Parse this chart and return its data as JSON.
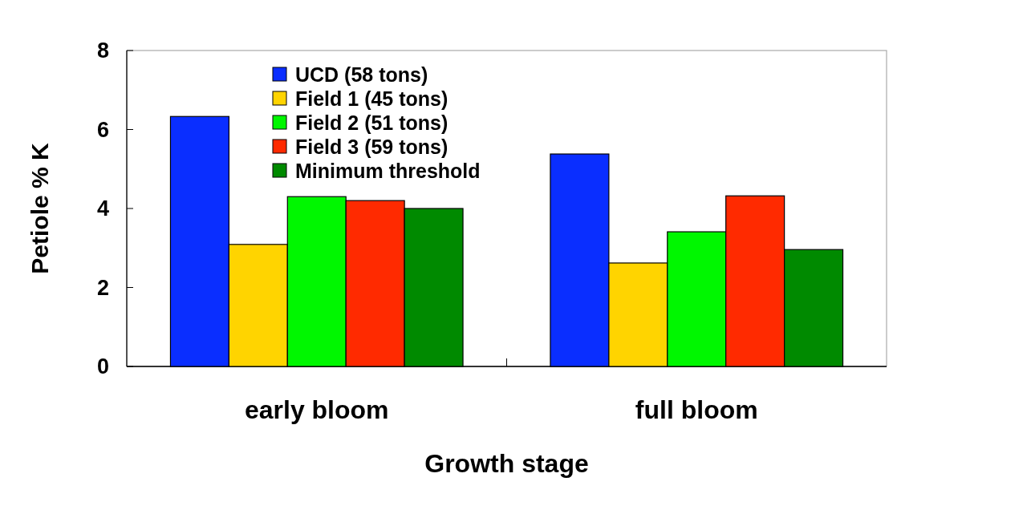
{
  "chart_data": {
    "type": "bar",
    "categories": [
      "early bloom",
      "full bloom"
    ],
    "xlabel": "Growth stage",
    "ylabel": "Petiole % K",
    "ylim": [
      0,
      8
    ],
    "yticks": [
      0,
      2,
      4,
      6,
      8
    ],
    "legend": "top",
    "series": [
      {
        "name": "UCD (58 tons)",
        "color": "#0a2eff",
        "values": [
          6.33,
          5.38
        ]
      },
      {
        "name": "Field 1 (45 tons)",
        "color": "#ffd400",
        "values": [
          3.09,
          2.62
        ]
      },
      {
        "name": "Field 2 (51 tons)",
        "color": "#00f700",
        "values": [
          4.3,
          3.41
        ]
      },
      {
        "name": "Field 3 (59 tons)",
        "color": "#ff2a00",
        "values": [
          4.2,
          4.32
        ]
      },
      {
        "name": "Minimum threshold",
        "color": "#008a00",
        "values": [
          4.0,
          2.96
        ]
      }
    ]
  }
}
